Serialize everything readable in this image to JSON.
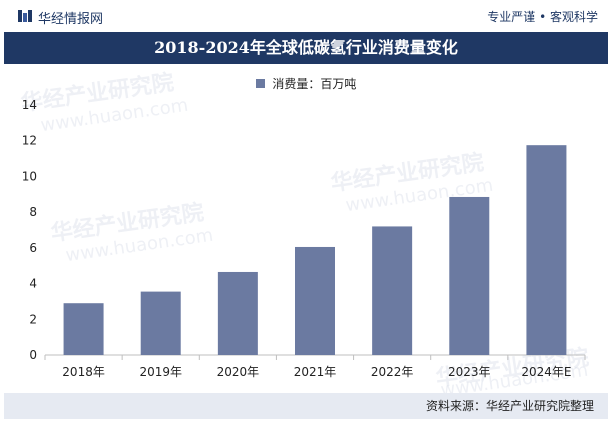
{
  "header": {
    "brand": "华经情报网",
    "slogan": "专业严谨 • 客观科学"
  },
  "watermark": {
    "text": "华经产业研究院",
    "url": "www.huaon.com"
  },
  "colors": {
    "title_band": "#1f3864",
    "bar": "#6b7aa1",
    "footer_band": "#e6eaf2"
  },
  "chart_data": {
    "type": "bar",
    "title": "2018-2024年全球低碳氢行业消费量变化",
    "categories": [
      "2018年",
      "2019年",
      "2020年",
      "2021年",
      "2022年",
      "2023年",
      "2024年E"
    ],
    "series": [
      {
        "name": "消费量：百万吨",
        "values": [
          2.9,
          3.55,
          4.65,
          6.05,
          7.2,
          8.85,
          11.75
        ]
      }
    ],
    "ylim": [
      0,
      14
    ],
    "yticks": [
      0,
      2,
      4,
      6,
      8,
      10,
      12,
      14
    ],
    "xlabel": "",
    "ylabel": "",
    "grid": false,
    "legend": "top-center"
  },
  "footer": {
    "source": "资料来源：华经产业研究院整理"
  }
}
